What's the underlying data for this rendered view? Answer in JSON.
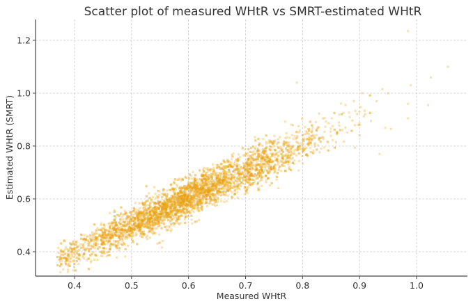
{
  "chart_data": {
    "type": "scatter",
    "title": "Scatter plot of measured WHtR vs SMRT-estimated WHtR",
    "xlabel": "Measured WHtR",
    "ylabel": "Estimated WHtR (SMRT)",
    "xlim": [
      0.333,
      1.09
    ],
    "ylim": [
      0.31,
      1.28
    ],
    "xticks": [
      0.4,
      0.5,
      0.6,
      0.7,
      0.8,
      0.9,
      1.0
    ],
    "xtick_labels": [
      "0.4",
      "0.5",
      "0.6",
      "0.7",
      "0.8",
      "0.9",
      "1.0"
    ],
    "yticks": [
      0.4,
      0.6,
      0.8,
      1.0,
      1.2
    ],
    "ytick_labels": [
      "0.4",
      "0.6",
      "0.8",
      "1.0",
      "1.2"
    ],
    "grid": true,
    "marker_color": "#E8A30F",
    "marker_alpha": 0.3,
    "n_points": 4000,
    "trend": {
      "slope": 1.02,
      "intercept": -0.01,
      "noise_sd": 0.035,
      "x_mean": 0.58,
      "x_sd": 0.095
    },
    "outliers": [
      [
        0.985,
        1.235
      ],
      [
        1.055,
        1.1
      ],
      [
        1.025,
        1.06
      ],
      [
        0.99,
        1.03
      ],
      [
        0.94,
        1.015
      ],
      [
        0.95,
        1.0
      ],
      [
        1.02,
        0.955
      ],
      [
        0.985,
        0.96
      ],
      [
        0.93,
        0.97
      ],
      [
        0.905,
        1.0
      ],
      [
        0.985,
        0.905
      ],
      [
        0.955,
        0.865
      ],
      [
        0.91,
        0.92
      ],
      [
        0.92,
        0.895
      ],
      [
        0.89,
        0.97
      ],
      [
        0.935,
        0.77
      ],
      [
        0.9,
        0.84
      ],
      [
        0.87,
        0.86
      ],
      [
        0.79,
        1.04
      ],
      [
        0.9,
        0.88
      ]
    ]
  }
}
